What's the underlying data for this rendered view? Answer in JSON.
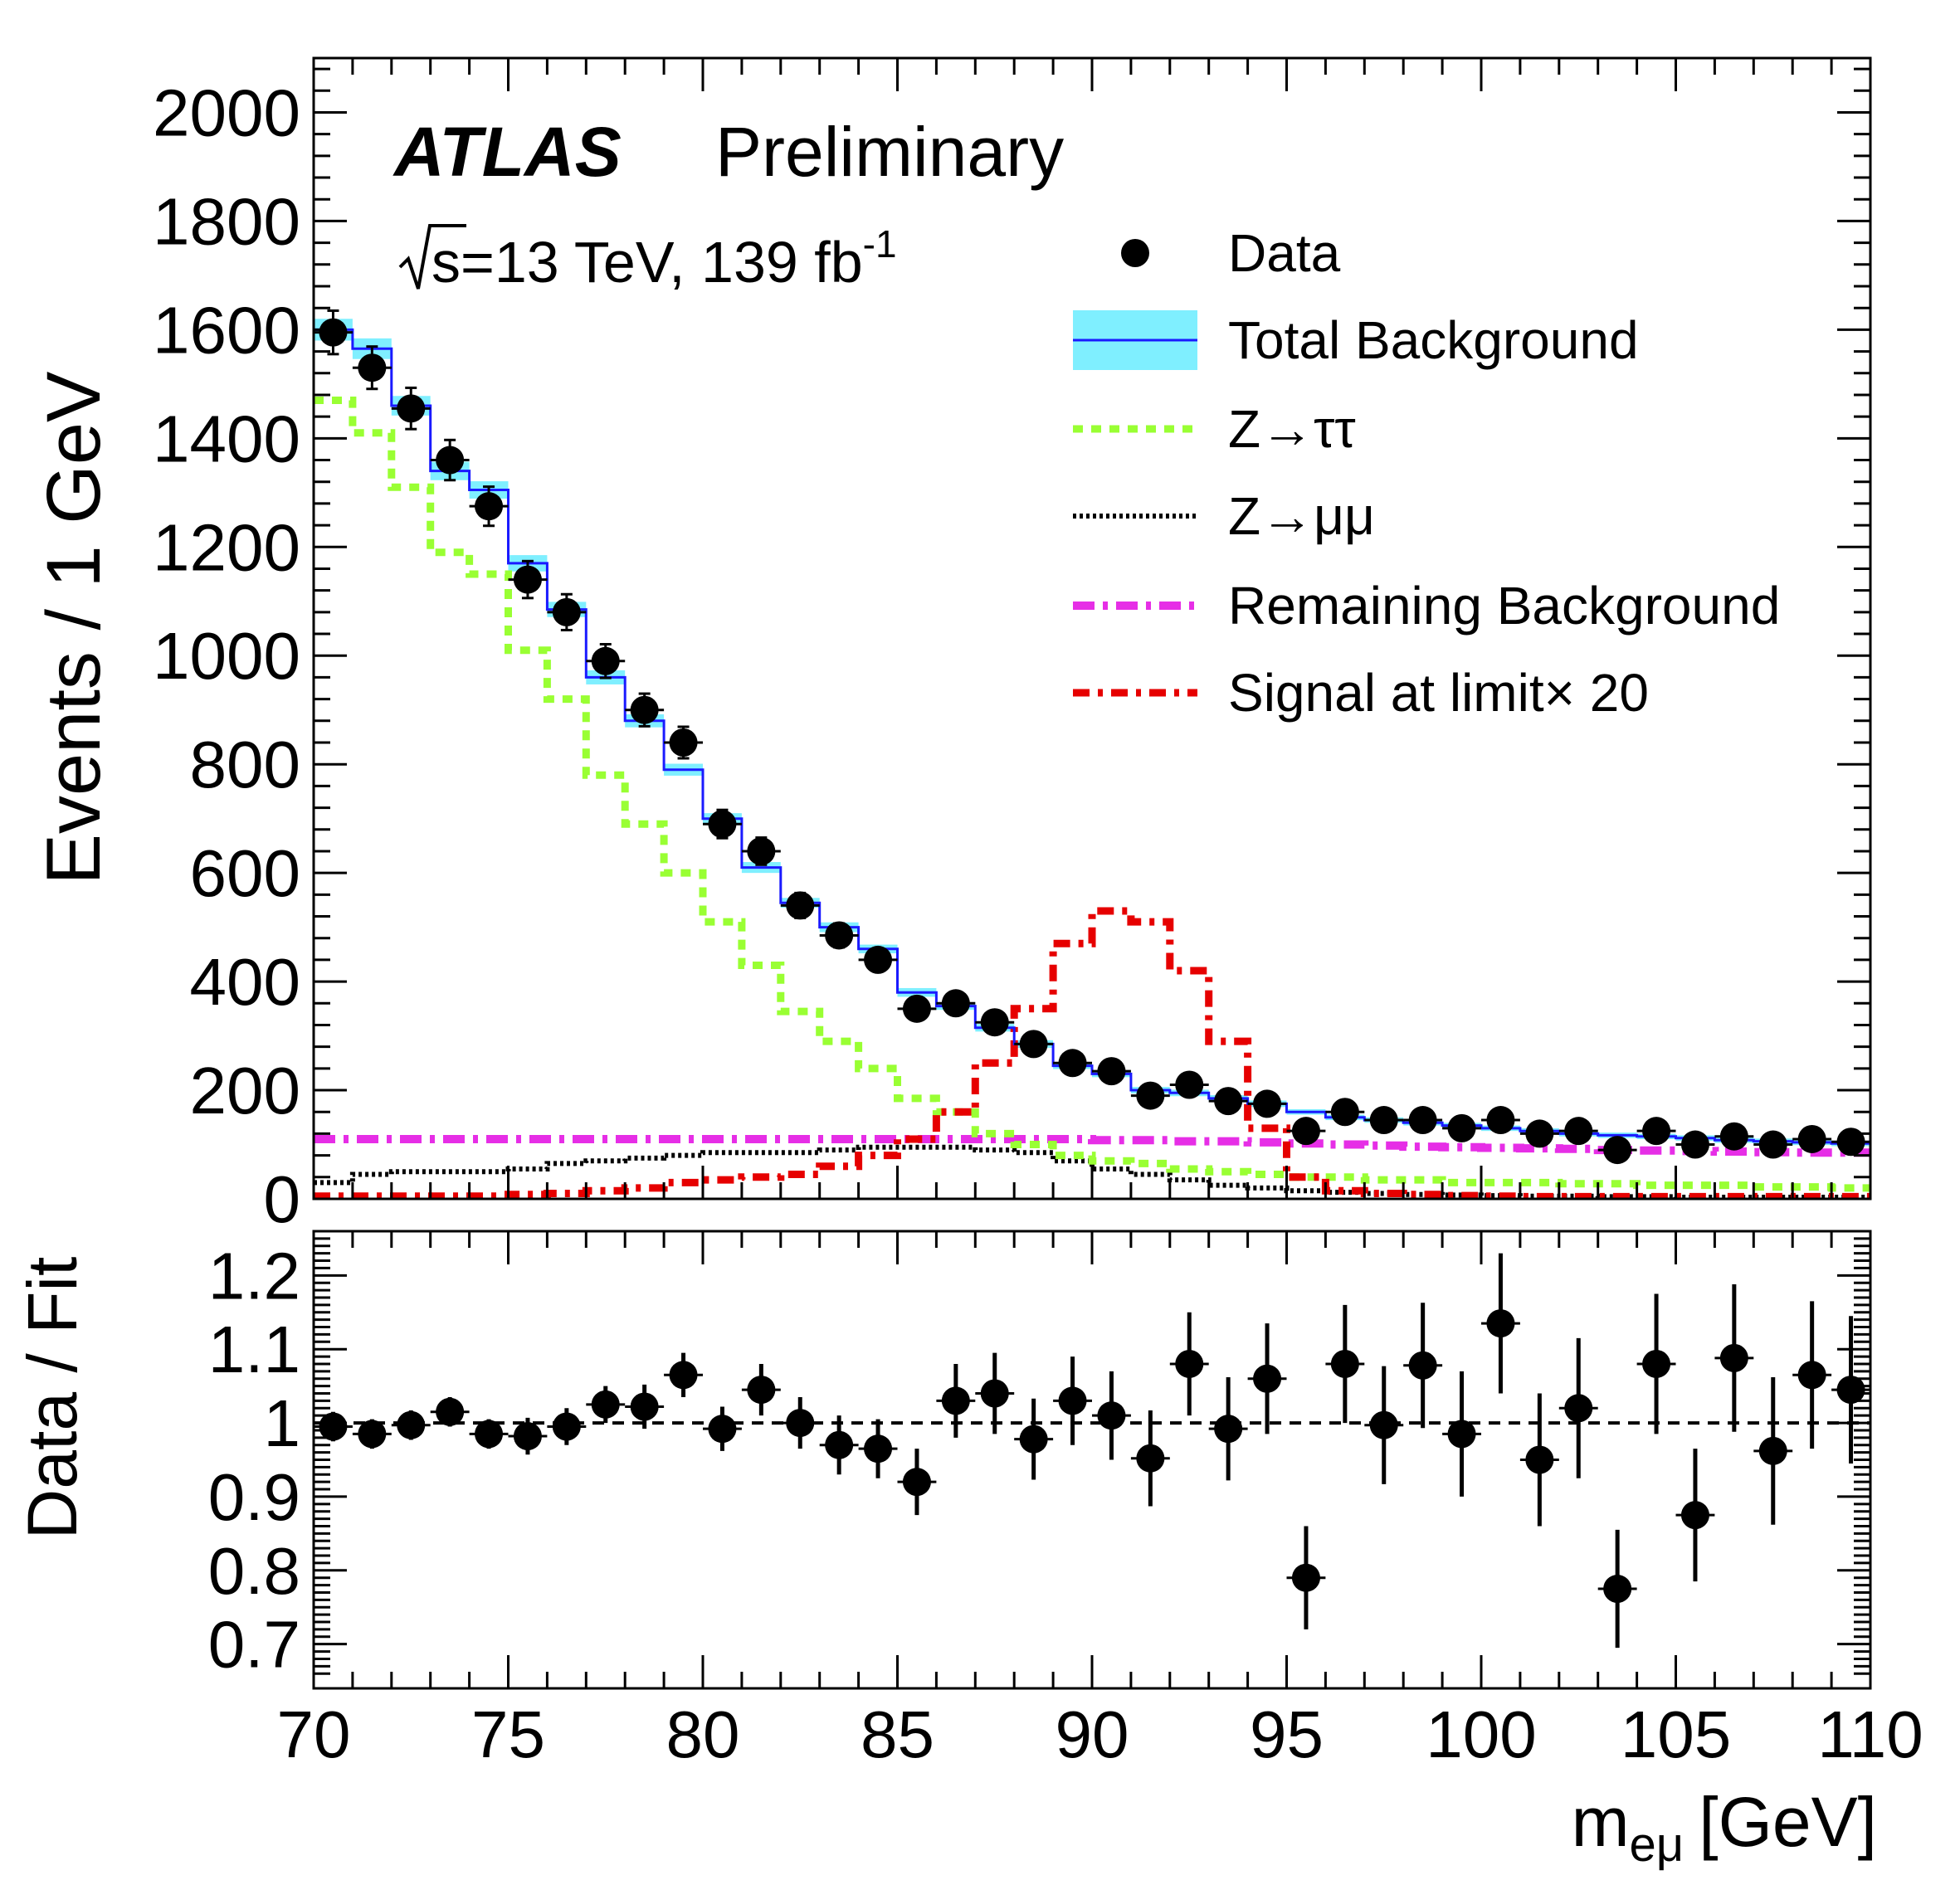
{
  "chart_data": [
    {
      "type": "line",
      "panel": "main",
      "title": "",
      "experiment": "ATLAS",
      "label": "Preliminary",
      "energy_prefix": "s=13 TeV, 139 fb",
      "energy_superscript": "-1",
      "xlabel": "",
      "ylabel": "Events / 1 GeV",
      "xlim": [
        70,
        110
      ],
      "ylim": [
        0,
        2100
      ],
      "x_ticks": [
        "70",
        "75",
        "80",
        "85",
        "90",
        "95",
        "100",
        "105",
        "110"
      ],
      "y_ticks": [
        "0",
        "200",
        "400",
        "600",
        "800",
        "1000",
        "1200",
        "1400",
        "1600",
        "1800",
        "2000"
      ],
      "grid": false,
      "legend_position": "top-right",
      "bin_edges": [
        70,
        71,
        72,
        73,
        74,
        75,
        76,
        77,
        78,
        79,
        80,
        81,
        82,
        83,
        84,
        85,
        86,
        87,
        88,
        89,
        90,
        91,
        92,
        93,
        94,
        95,
        96,
        97,
        98,
        99,
        100,
        101,
        102,
        103,
        104,
        105,
        106,
        107,
        108,
        109,
        110
      ],
      "series": [
        {
          "name": "Data",
          "kind": "points",
          "color": "#000000",
          "x": [
            70.5,
            71.5,
            72.5,
            73.5,
            74.5,
            75.5,
            76.5,
            77.5,
            78.5,
            79.5,
            80.5,
            81.5,
            82.5,
            83.5,
            84.5,
            85.5,
            86.5,
            87.5,
            88.5,
            89.5,
            90.5,
            91.5,
            92.5,
            93.5,
            94.5,
            95.5,
            96.5,
            97.5,
            98.5,
            99.5,
            100.5,
            101.5,
            102.5,
            103.5,
            104.5,
            105.5,
            106.5,
            107.5,
            108.5,
            109.5
          ],
          "values": [
            1595,
            1530,
            1455,
            1360,
            1275,
            1140,
            1080,
            990,
            900,
            840,
            690,
            640,
            540,
            485,
            440,
            350,
            360,
            325,
            285,
            250,
            235,
            190,
            210,
            180,
            175,
            125,
            160,
            145,
            145,
            130,
            145,
            120,
            125,
            90,
            125,
            100,
            115,
            100,
            110,
            105
          ],
          "errors": [
            40,
            39,
            38,
            37,
            36,
            34,
            33,
            31,
            30,
            29,
            26,
            25,
            23,
            22,
            21,
            19,
            19,
            18,
            17,
            16,
            15,
            14,
            14,
            13,
            13,
            11,
            13,
            12,
            12,
            11,
            12,
            11,
            11,
            9,
            11,
            10,
            11,
            10,
            10,
            10
          ]
        },
        {
          "name": "Total Background",
          "kind": "step",
          "color": "#1a1aff",
          "band_color": "#7fefff",
          "values": [
            1600,
            1565,
            1460,
            1340,
            1305,
            1170,
            1085,
            960,
            880,
            790,
            700,
            610,
            545,
            500,
            460,
            380,
            355,
            315,
            285,
            245,
            230,
            200,
            195,
            185,
            175,
            160,
            150,
            145,
            140,
            135,
            130,
            125,
            120,
            117,
            115,
            112,
            108,
            106,
            104,
            102
          ],
          "errors": [
            20,
            19,
            18,
            17,
            16,
            15,
            14,
            13,
            12,
            11,
            10,
            10,
            9,
            9,
            8,
            8,
            7,
            7,
            7,
            6,
            6,
            6,
            6,
            6,
            6,
            5,
            5,
            5,
            5,
            5,
            5,
            5,
            5,
            5,
            5,
            5,
            5,
            5,
            5,
            5
          ]
        },
        {
          "name": "Z→ττ",
          "kind": "step",
          "color": "#99ff33",
          "values": [
            1470,
            1410,
            1310,
            1190,
            1150,
            1010,
            920,
            780,
            690,
            600,
            510,
            430,
            345,
            290,
            240,
            185,
            160,
            120,
            100,
            80,
            70,
            65,
            55,
            50,
            45,
            40,
            40,
            35,
            35,
            30,
            30,
            30,
            28,
            28,
            25,
            25,
            25,
            22,
            22,
            20
          ]
        },
        {
          "name": "Z→μμ",
          "kind": "step",
          "color": "#000000",
          "values": [
            30,
            45,
            50,
            50,
            50,
            55,
            65,
            70,
            75,
            80,
            85,
            85,
            85,
            90,
            95,
            95,
            95,
            90,
            85,
            70,
            55,
            45,
            35,
            25,
            20,
            15,
            12,
            10,
            8,
            7,
            6,
            5,
            5,
            4,
            4,
            3,
            3,
            3,
            3,
            3
          ]
        },
        {
          "name": "Remaining Background",
          "kind": "step",
          "color": "#e62ee6",
          "values": [
            110,
            110,
            110,
            110,
            110,
            110,
            110,
            110,
            110,
            110,
            110,
            110,
            110,
            110,
            110,
            110,
            110,
            110,
            110,
            110,
            108,
            108,
            106,
            106,
            104,
            102,
            100,
            98,
            96,
            95,
            94,
            93,
            92,
            90,
            89,
            88,
            87,
            86,
            85,
            85
          ]
        },
        {
          "name": "Signal at limit× 20",
          "kind": "step",
          "color": "#e60000",
          "values": [
            5,
            5,
            5,
            5,
            5,
            8,
            10,
            15,
            20,
            30,
            35,
            40,
            45,
            60,
            80,
            110,
            160,
            250,
            350,
            470,
            530,
            510,
            420,
            290,
            130,
            40,
            15,
            10,
            8,
            6,
            5,
            4,
            4,
            4,
            4,
            4,
            4,
            4,
            4,
            4
          ]
        }
      ]
    },
    {
      "type": "scatter",
      "panel": "ratio",
      "title": "",
      "xlabel_main": "m",
      "xlabel_sub": "eμ",
      "xlabel_unit": "[GeV]",
      "ylabel": "Data / Fit",
      "xlim": [
        70,
        110
      ],
      "ylim": [
        0.64,
        1.26
      ],
      "y_ticks": [
        "0.7",
        "0.8",
        "0.9",
        "1",
        "1.1",
        "1.2"
      ],
      "reference_line": 1.0,
      "grid": false,
      "series": [
        {
          "name": "",
          "kind": "points",
          "color": "#000000",
          "x": [
            70.5,
            71.5,
            72.5,
            73.5,
            74.5,
            75.5,
            76.5,
            77.5,
            78.5,
            79.5,
            80.5,
            81.5,
            82.5,
            83.5,
            84.5,
            85.5,
            86.5,
            87.5,
            88.5,
            89.5,
            90.5,
            91.5,
            92.5,
            93.5,
            94.5,
            95.5,
            96.5,
            97.5,
            98.5,
            99.5,
            100.5,
            101.5,
            102.5,
            103.5,
            104.5,
            105.5,
            106.5,
            107.5,
            108.5,
            109.5
          ],
          "values": [
            0.995,
            0.985,
            0.997,
            1.015,
            0.985,
            0.982,
            0.995,
            1.025,
            1.022,
            1.065,
            0.992,
            1.045,
            1.0,
            0.97,
            0.965,
            0.92,
            1.03,
            1.04,
            0.978,
            1.03,
            1.01,
            0.952,
            1.08,
            0.992,
            1.06,
            0.79,
            1.08,
            0.997,
            1.078,
            0.985,
            1.135,
            0.95,
            1.02,
            0.775,
            1.08,
            0.875,
            1.088,
            0.962,
            1.065,
            1.045
          ],
          "errors": [
            0.02,
            0.02,
            0.02,
            0.02,
            0.02,
            0.025,
            0.025,
            0.025,
            0.03,
            0.03,
            0.03,
            0.035,
            0.035,
            0.04,
            0.04,
            0.045,
            0.05,
            0.055,
            0.055,
            0.06,
            0.06,
            0.065,
            0.07,
            0.07,
            0.075,
            0.07,
            0.08,
            0.08,
            0.085,
            0.085,
            0.095,
            0.09,
            0.095,
            0.08,
            0.095,
            0.09,
            0.1,
            0.1,
            0.1,
            0.1
          ]
        }
      ]
    }
  ]
}
